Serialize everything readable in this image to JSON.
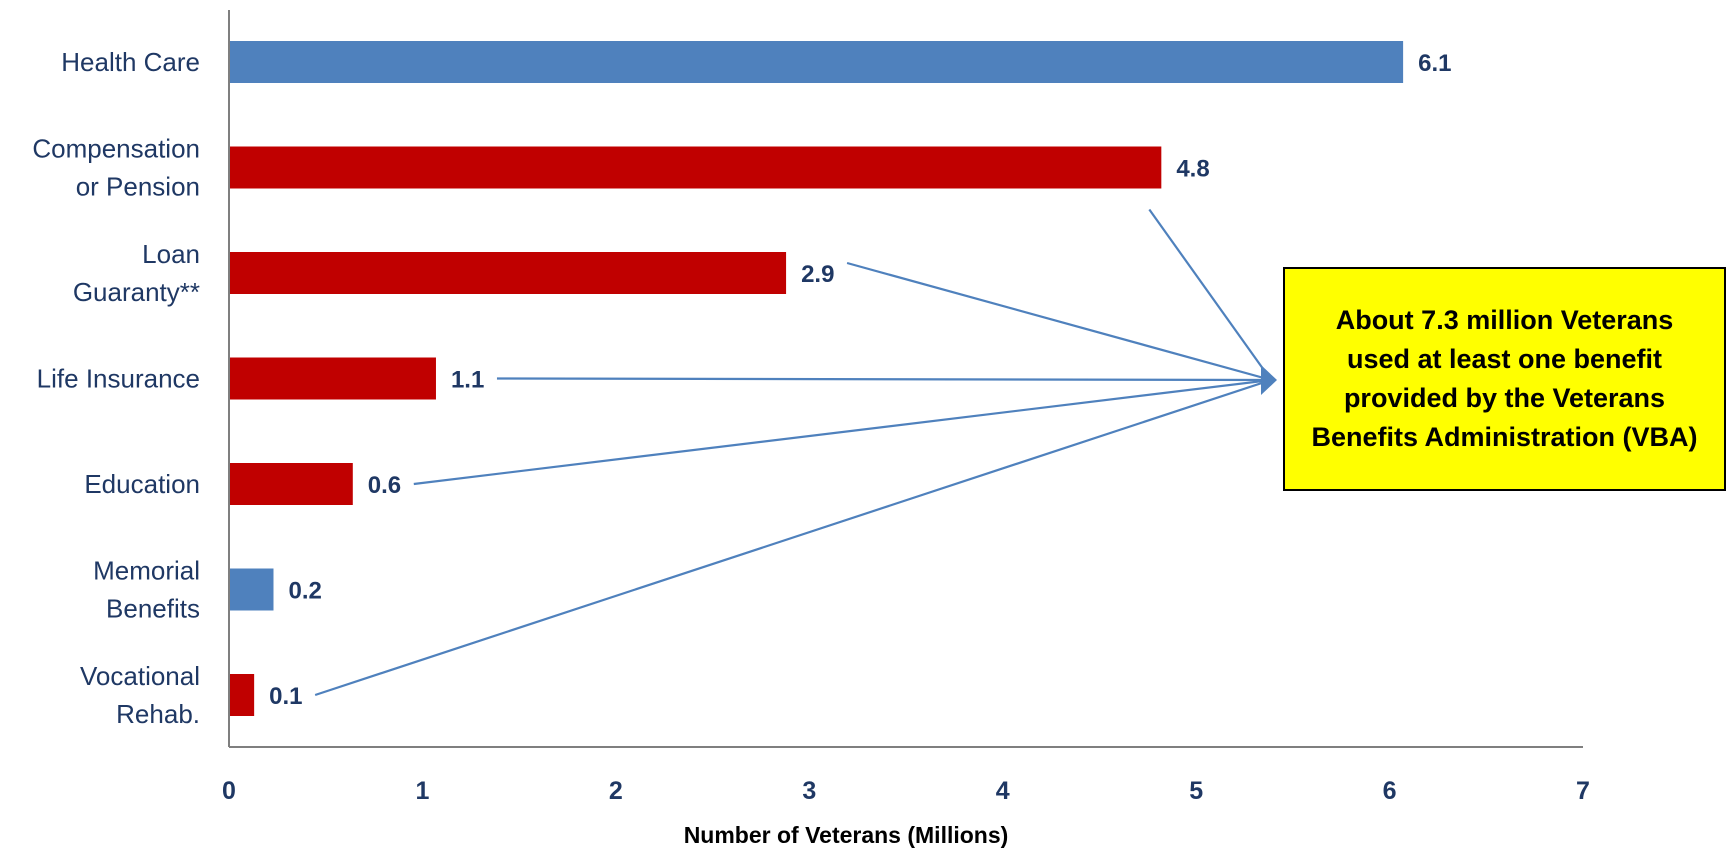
{
  "chart_data": {
    "type": "bar",
    "orientation": "horizontal",
    "categories": [
      [
        "Health Care"
      ],
      [
        "Compensation",
        "or Pension"
      ],
      [
        "Loan",
        "Guaranty**"
      ],
      [
        "Life Insurance"
      ],
      [
        "Education"
      ],
      [
        "Memorial",
        "Benefits"
      ],
      [
        "Vocational",
        "Rehab."
      ]
    ],
    "values": [
      6.1,
      4.8,
      2.9,
      1.1,
      0.6,
      0.2,
      0.1
    ],
    "bar_values": [
      6.07,
      4.82,
      2.88,
      1.07,
      0.64,
      0.23,
      0.13
    ],
    "data_labels": [
      "6.1",
      "4.8",
      "2.9",
      "1.1",
      "0.6",
      "0.2",
      "0.1"
    ],
    "bar_colors": [
      "#4f81bd",
      "#c00000",
      "#c00000",
      "#c00000",
      "#c00000",
      "#4f81bd",
      "#c00000"
    ],
    "xlabel": "Number of Veterans (Millions)",
    "xlim": [
      0,
      7
    ],
    "xticks": [
      0,
      1,
      2,
      3,
      4,
      5,
      6,
      7
    ],
    "grid": false,
    "legend": "none",
    "annotation": {
      "text": "About 7.3 million Veterans used at least one benefit provided by the Veterans Benefits Administration (VBA)",
      "background": "#ffff00",
      "arrow_color": "#4f81bd",
      "arrows_from_categories": [
        1,
        2,
        3,
        4,
        6
      ]
    }
  }
}
